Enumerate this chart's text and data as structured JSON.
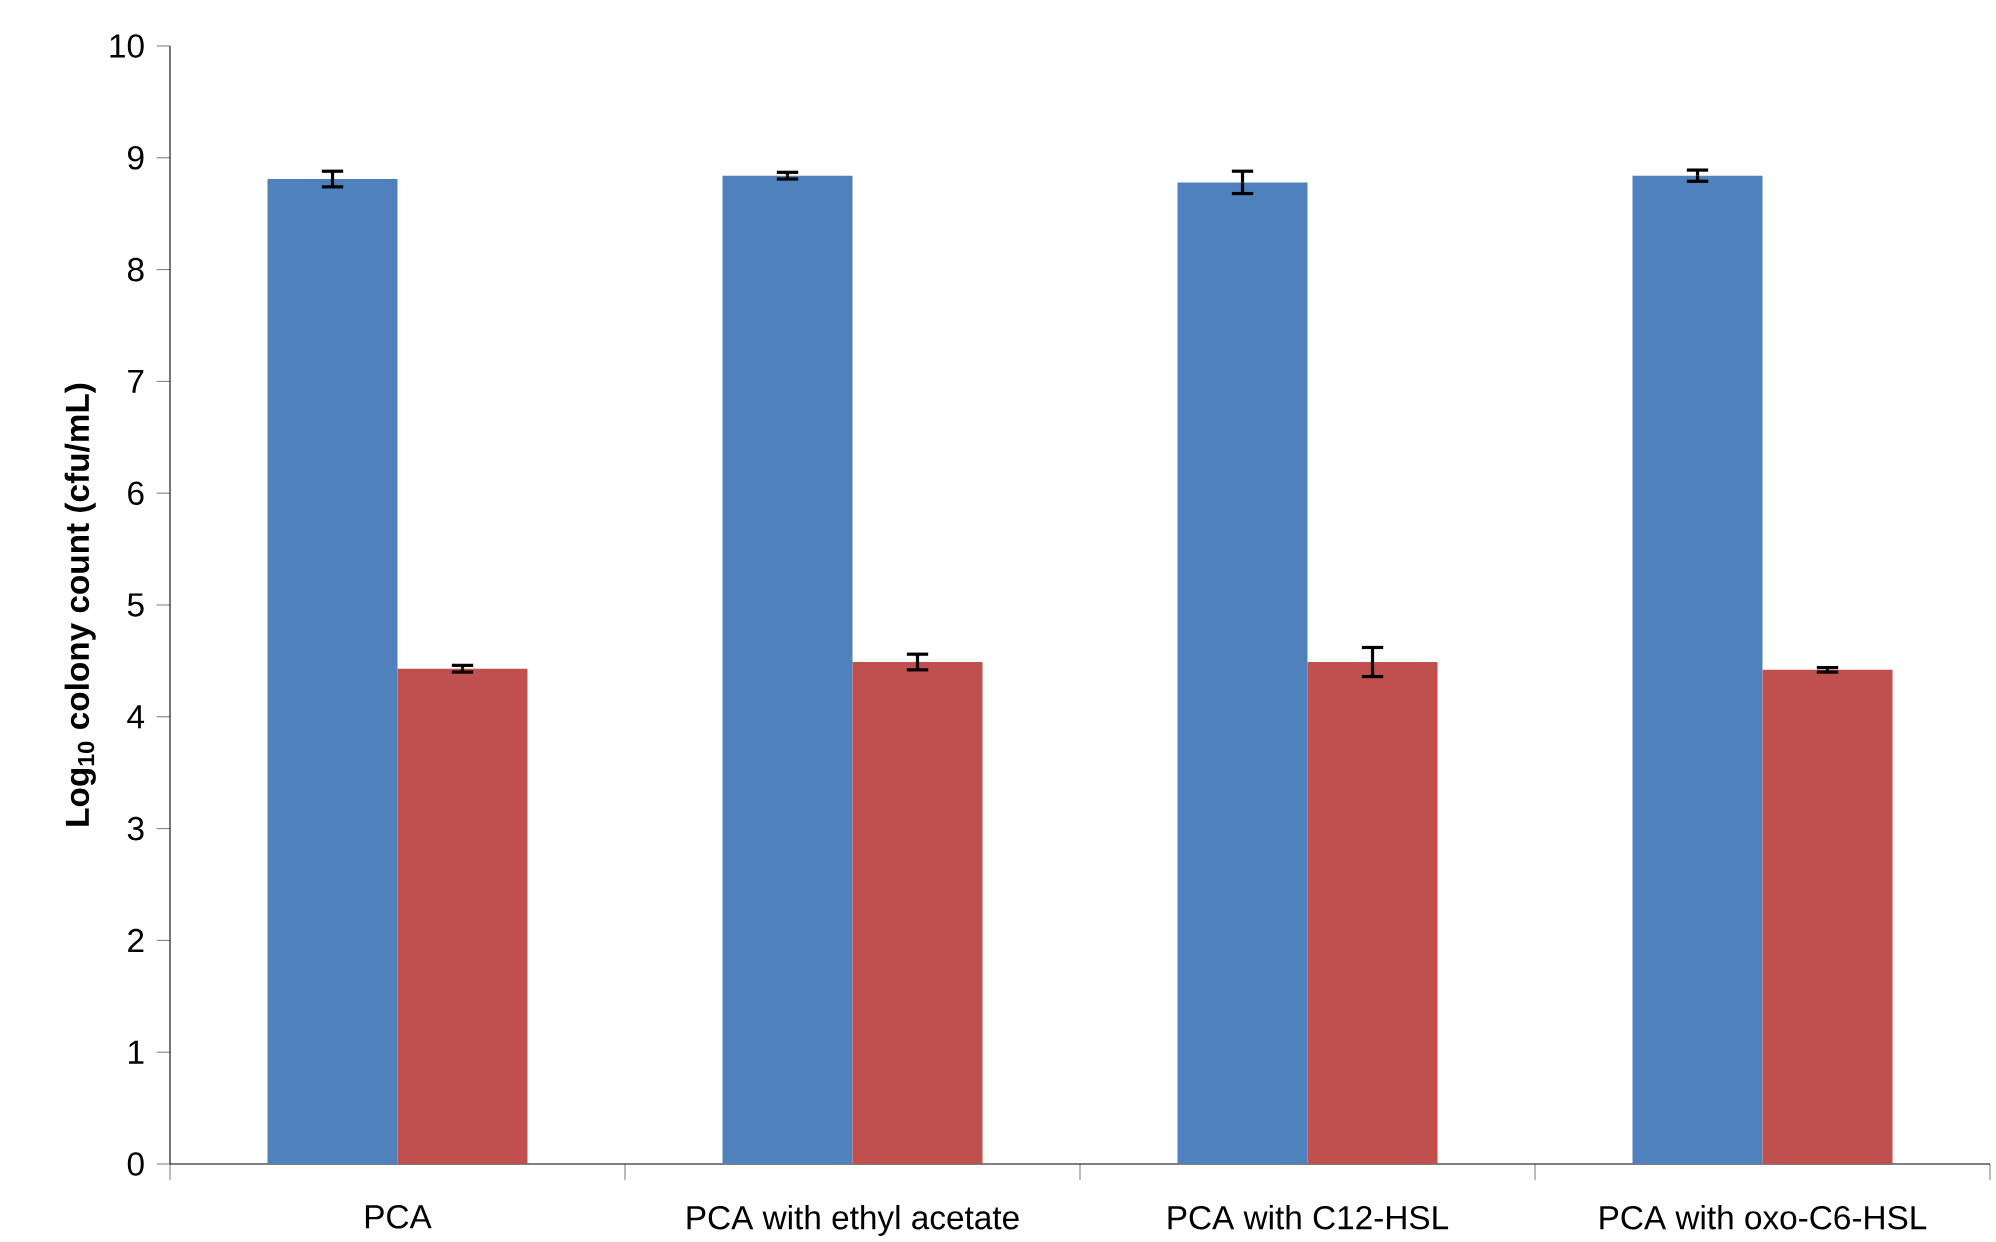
{
  "chart_data": {
    "type": "bar",
    "ylabel": "Log$_{10}$ colony count (cfu/mL)",
    "categories": [
      "PCA",
      "PCA with ethyl acetate",
      "PCA with C12-HSL",
      "PCA with oxo-C6-HSL"
    ],
    "series": [
      {
        "color": "#4f81bd",
        "values": [
          8.81,
          8.84,
          8.78,
          8.84
        ],
        "errors": [
          0.07,
          0.03,
          0.1,
          0.05
        ]
      },
      {
        "color": "#c0504d",
        "values": [
          4.43,
          4.49,
          4.49,
          4.42
        ],
        "errors": [
          0.03,
          0.07,
          0.13,
          0.02
        ]
      }
    ],
    "ylim": [
      0,
      10
    ],
    "yticks": [
      0,
      1,
      2,
      3,
      4,
      5,
      6,
      7,
      8,
      9,
      10
    ]
  }
}
